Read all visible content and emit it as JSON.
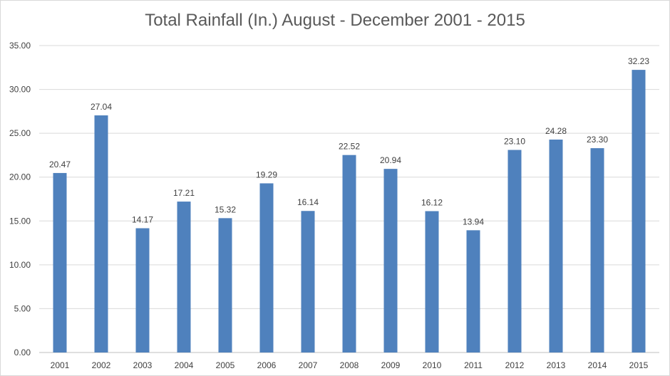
{
  "chart_data": {
    "type": "bar",
    "title": "Total Rainfall (In.) August - December 2001 - 2015",
    "xlabel": "",
    "ylabel": "",
    "ylim": [
      0,
      35
    ],
    "y_ticks": [
      "0.00",
      "5.00",
      "10.00",
      "15.00",
      "20.00",
      "25.00",
      "30.00",
      "35.00"
    ],
    "grid": true,
    "legend": "none",
    "bar_color": "#4f81bd",
    "categories": [
      "2001",
      "2002",
      "2003",
      "2004",
      "2005",
      "2006",
      "2007",
      "2008",
      "2009",
      "2010",
      "2011",
      "2012",
      "2013",
      "2014",
      "2015"
    ],
    "values": [
      20.47,
      27.04,
      14.17,
      17.21,
      15.32,
      19.29,
      16.14,
      22.52,
      20.94,
      16.12,
      13.94,
      23.1,
      24.28,
      23.3,
      32.23
    ],
    "value_labels": [
      "20.47",
      "27.04",
      "14.17",
      "17.21",
      "15.32",
      "19.29",
      "16.14",
      "22.52",
      "20.94",
      "16.12",
      "13.94",
      "23.10",
      "24.28",
      "23.30",
      "32.23"
    ]
  }
}
